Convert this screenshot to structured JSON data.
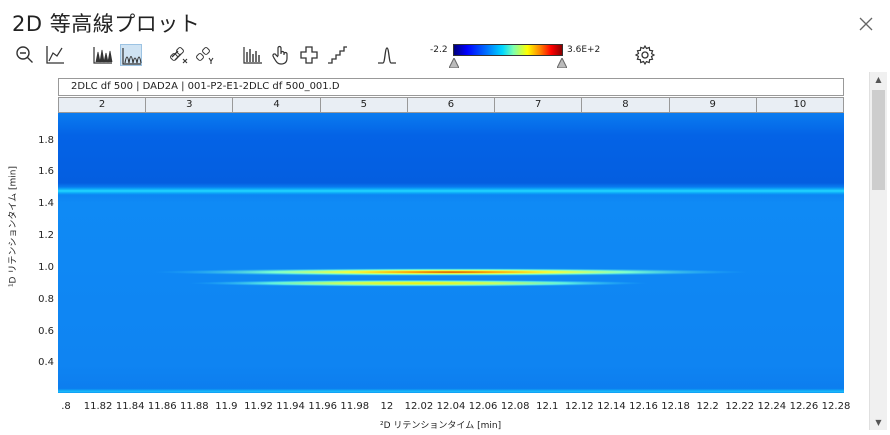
{
  "window": {
    "title": "2D 等高線プロット"
  },
  "toolbar": {
    "icons": [
      "zoom-out-icon",
      "axis-scale-icon",
      "peaks-icon",
      "contour-peaks-icon",
      "link-x-icon",
      "link-y-icon",
      "histogram-icon",
      "pan-hand-icon",
      "crosshair-icon",
      "step-icon",
      "peak-shape-icon",
      "settings-gear-icon"
    ]
  },
  "color_scale": {
    "min_label": "-2.2",
    "max_label": "3.6E+2",
    "colors": [
      "#00007a",
      "#0000ff",
      "#0070ff",
      "#00d8ff",
      "#7dffb0",
      "#ffff00",
      "#ff8000",
      "#ff0000",
      "#8a0000"
    ]
  },
  "plot": {
    "header_text": "2DLC df 500 | DAD2A | 001-P2-E1-2DLC df 500_001.D",
    "column_labels": [
      "2",
      "3",
      "4",
      "5",
      "6",
      "7",
      "8",
      "9",
      "10"
    ],
    "y_axis_label": "¹D リテンションタイム [min]",
    "x_axis_label": "²D リテンションタイム [min]",
    "y_ticks": [
      "1.8",
      "1.6",
      "1.4",
      "1.2",
      "1.0",
      "0.8",
      "0.6",
      "0.4"
    ],
    "x_ticks": [
      ".8",
      "11.82",
      "11.84",
      "11.86",
      "11.88",
      "11.9",
      "11.92",
      "11.94",
      "11.96",
      "11.98",
      "12",
      "12.02",
      "12.04",
      "12.06",
      "12.08",
      "12.1",
      "12.12",
      "12.14",
      "12.16",
      "12.18",
      "12.2",
      "12.22",
      "12.24",
      "12.26",
      "12.28"
    ]
  },
  "chart_data": {
    "type": "heatmap",
    "xlabel": "²D リテンションタイム [min]",
    "ylabel": "¹D リテンションタイム [min]",
    "xlim": [
      11.8,
      12.28
    ],
    "ylim": [
      0.22,
      1.98
    ],
    "bands": [
      {
        "y": 1.49,
        "intensity": "medium"
      },
      {
        "y": 0.98,
        "x_center": 12.04,
        "intensity": "high"
      },
      {
        "y": 0.91,
        "x_center": 12.02,
        "intensity": "medium"
      },
      {
        "y": 0.23,
        "intensity": "low"
      }
    ]
  }
}
